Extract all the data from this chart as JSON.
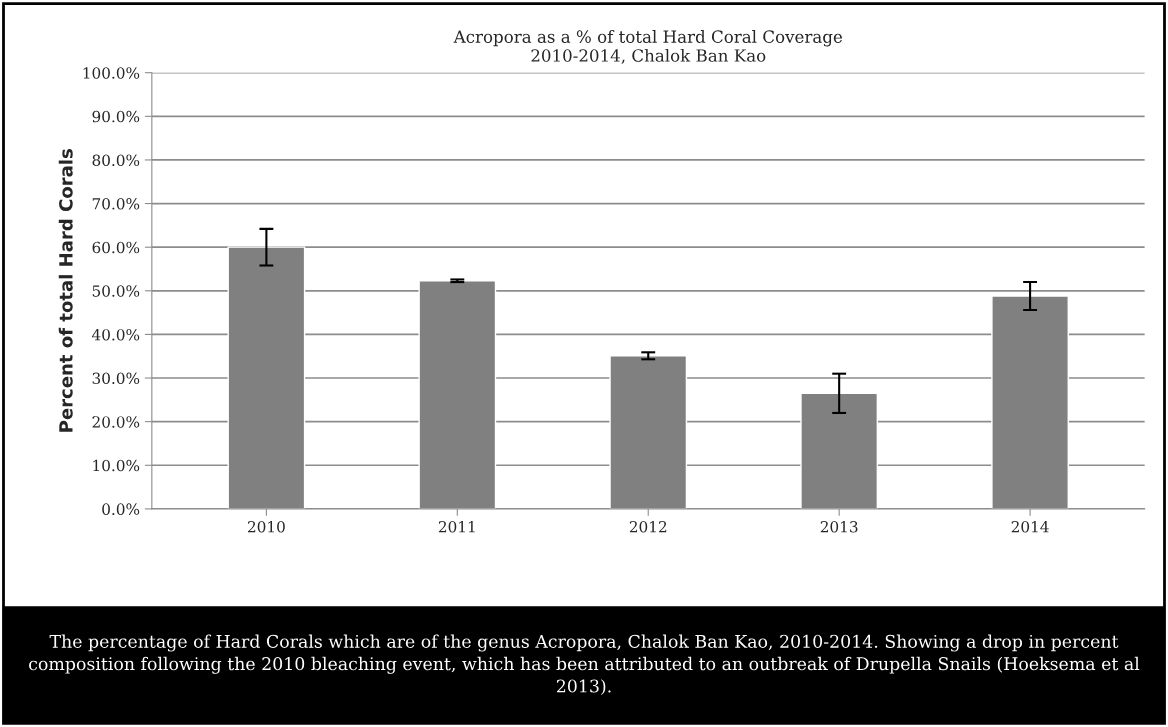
{
  "chart_data": {
    "type": "bar",
    "title": "Acropora as a % of total Hard Coral Coverage\n2010-2014, Chalok Ban Kao",
    "ylabel": "Percent of total Hard Corals",
    "categories": [
      "2010",
      "2011",
      "2012",
      "2013",
      "2014"
    ],
    "values": [
      60.0,
      52.3,
      35.1,
      26.5,
      48.8
    ],
    "errors": [
      4.2,
      0.3,
      0.8,
      4.5,
      3.2
    ],
    "color": "#808080",
    "ylim": [
      0,
      100
    ],
    "yticks": [
      {
        "value": 0,
        "label": "0.0%"
      },
      {
        "value": 10,
        "label": "10.0%"
      },
      {
        "value": 20,
        "label": "20.0%"
      },
      {
        "value": 30,
        "label": "30.0%"
      },
      {
        "value": 40,
        "label": "40.0%"
      },
      {
        "value": 50,
        "label": "50.0%"
      },
      {
        "value": 60,
        "label": "60.0%"
      },
      {
        "value": 70,
        "label": "70.0%"
      },
      {
        "value": 80,
        "label": "80.0%"
      },
      {
        "value": 90,
        "label": "90.0%"
      },
      {
        "value": 100,
        "label": "100.0%"
      }
    ],
    "grid": "y",
    "annotations": [
      "The percentage of Hard Corals which are of the genus Acropora, Chalok Ban Kao, 2010-2014. Showing a drop in percent composition following the 2010 bleaching event, which has been attributed to an outbreak of Drupella Snails (Hoeksema et al 2013)."
    ]
  }
}
